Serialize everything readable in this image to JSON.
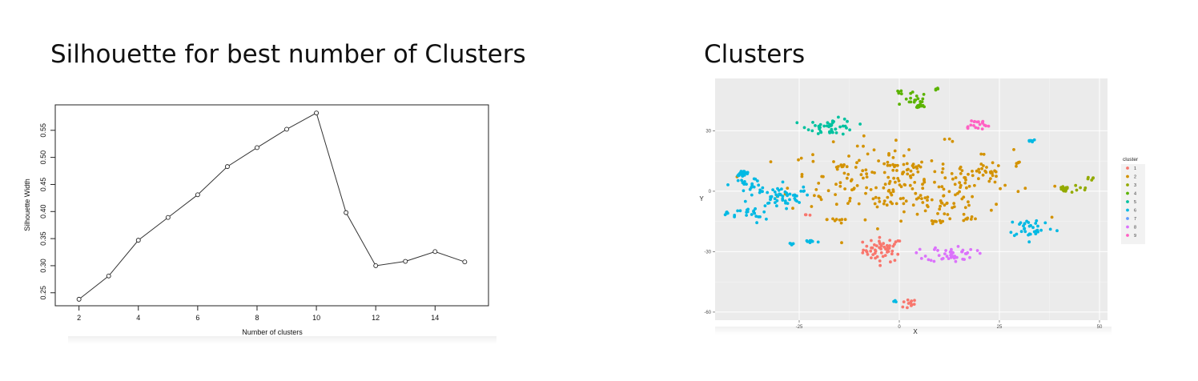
{
  "slide": {
    "left_title": "Silhouette for best number of Clusters",
    "right_title": "Clusters"
  },
  "chart_data": [
    {
      "type": "line",
      "title": "Silhouette for best number of Clusters",
      "xlabel": "Number of clusters",
      "ylabel": "Silhouette Width",
      "x": [
        2,
        3,
        4,
        5,
        6,
        7,
        8,
        9,
        10,
        11,
        12,
        13,
        14,
        15
      ],
      "values": [
        0.238,
        0.281,
        0.347,
        0.389,
        0.431,
        0.483,
        0.518,
        0.552,
        0.582,
        0.398,
        0.3,
        0.308,
        0.326,
        0.307
      ],
      "x_ticks": [
        "2",
        "4",
        "6",
        "8",
        "10",
        "12",
        "14"
      ],
      "y_ticks": [
        "0.25",
        "0.30",
        "0.35",
        "0.40",
        "0.45",
        "0.50",
        "0.55"
      ],
      "xlim": [
        1.2,
        15.8
      ],
      "ylim": [
        0.226,
        0.597
      ],
      "marker": "open-circle",
      "color": "#333333"
    },
    {
      "type": "scatter",
      "title": "Clusters",
      "xlabel": "X",
      "ylabel": "Y",
      "x_ticks": [
        "-25",
        "0",
        "25",
        "50"
      ],
      "y_ticks": [
        "-60",
        "-30",
        "0",
        "30"
      ],
      "xlim": [
        -46,
        52
      ],
      "ylim": [
        -64,
        56
      ],
      "grid": true,
      "legend_title": "cluster",
      "legend_position": "right",
      "series": [
        {
          "name": "1",
          "color": "#F8766D",
          "clusters": [
            {
              "cx": -4,
              "cy": -29,
              "sx": 2.5,
              "sy": 3,
              "n": 55
            },
            {
              "cx": 2,
              "cy": -56,
              "sx": 1.2,
              "sy": 1.2,
              "n": 12
            },
            {
              "cx": -23,
              "cy": -12,
              "sx": 0.4,
              "sy": 0.4,
              "n": 3
            }
          ]
        },
        {
          "name": "2",
          "color": "#D39200",
          "clusters": [
            {
              "cx": 0,
              "cy": 5,
              "sx": 14,
              "sy": 9,
              "n": 230
            },
            {
              "cx": 10,
              "cy": -6,
              "sx": 4,
              "sy": 3,
              "n": 20
            },
            {
              "cx": 21,
              "cy": 8,
              "sx": 3,
              "sy": 2,
              "n": 20
            },
            {
              "cx": -15,
              "cy": 13,
              "sx": 1,
              "sy": 2,
              "n": 8
            },
            {
              "cx": 9,
              "cy": -15,
              "sx": 1.5,
              "sy": 1,
              "n": 8
            },
            {
              "cx": -16,
              "cy": -14,
              "sx": 1,
              "sy": 0.6,
              "n": 6
            },
            {
              "cx": 17,
              "cy": -13,
              "sx": 1,
              "sy": 1.5,
              "n": 8
            },
            {
              "cx": 30,
              "cy": 14,
              "sx": 0.6,
              "sy": 0.4,
              "n": 4
            }
          ]
        },
        {
          "name": "3",
          "color": "#93AA00",
          "clusters": [
            {
              "cx": 41,
              "cy": 1,
              "sx": 0.6,
              "sy": 0.6,
              "n": 22
            },
            {
              "cx": 45,
              "cy": 1,
              "sx": 2,
              "sy": 1,
              "n": 6
            },
            {
              "cx": 48,
              "cy": 6,
              "sx": 0.6,
              "sy": 0.6,
              "n": 5
            }
          ]
        },
        {
          "name": "4",
          "color": "#5BB300",
          "clusters": [
            {
              "cx": 4,
              "cy": 45,
              "sx": 1.5,
              "sy": 2,
              "n": 20
            },
            {
              "cx": 5,
              "cy": 42,
              "sx": 0.6,
              "sy": 0.4,
              "n": 10
            },
            {
              "cx": 0,
              "cy": 49,
              "sx": 0.6,
              "sy": 0.6,
              "n": 5
            },
            {
              "cx": 10,
              "cy": 51,
              "sx": 0.4,
              "sy": 0.3,
              "n": 4
            }
          ]
        },
        {
          "name": "5",
          "color": "#00C19F",
          "clusters": [
            {
              "cx": -17,
              "cy": 32,
              "sx": 3,
              "sy": 2,
              "n": 45
            }
          ]
        },
        {
          "name": "6",
          "color": "#00B9E3",
          "clusters": [
            {
              "cx": -39,
              "cy": 9,
              "sx": 0.8,
              "sy": 0.6,
              "n": 25
            },
            {
              "cx": -37,
              "cy": 3,
              "sx": 2.5,
              "sy": 2,
              "n": 25
            },
            {
              "cx": -30,
              "cy": -3,
              "sx": 3,
              "sy": 2.5,
              "n": 45
            },
            {
              "cx": -37,
              "cy": -12,
              "sx": 2,
              "sy": 2,
              "n": 20
            },
            {
              "cx": -22,
              "cy": -25,
              "sx": 1,
              "sy": 0.5,
              "n": 15
            },
            {
              "cx": -27,
              "cy": -26,
              "sx": 0.3,
              "sy": 1,
              "n": 5
            },
            {
              "cx": 33,
              "cy": -18,
              "sx": 3,
              "sy": 2.5,
              "n": 35
            },
            {
              "cx": 33,
              "cy": 25,
              "sx": 0.5,
              "sy": 0.6,
              "n": 8
            },
            {
              "cx": -43,
              "cy": -11,
              "sx": 0.4,
              "sy": 0.4,
              "n": 5
            },
            {
              "cx": -1,
              "cy": -55,
              "sx": 0.4,
              "sy": 0.4,
              "n": 3
            },
            {
              "cx": -24,
              "cy": 0,
              "sx": 0.3,
              "sy": 0.3,
              "n": 3
            }
          ]
        },
        {
          "name": "7",
          "color": "#619CFF",
          "clusters": []
        },
        {
          "name": "8",
          "color": "#DB72FB",
          "clusters": [
            {
              "cx": 13,
              "cy": -31,
              "sx": 3,
              "sy": 2,
              "n": 45
            }
          ]
        },
        {
          "name": "9",
          "color": "#FF61C3",
          "clusters": [
            {
              "cx": 19,
              "cy": 33,
              "sx": 1.8,
              "sy": 1.5,
              "n": 20
            }
          ]
        }
      ]
    }
  ]
}
